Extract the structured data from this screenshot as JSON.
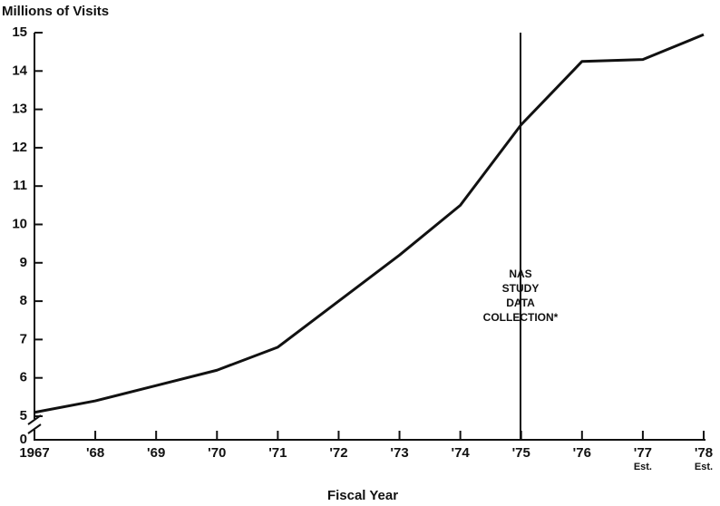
{
  "chart_data": {
    "type": "line",
    "title": "Millions of Visits",
    "x_label": "Fiscal Year",
    "categories": [
      "1967",
      "'68",
      "'69",
      "'70",
      "'71",
      "'72",
      "'73",
      "'74",
      "'75",
      "'76",
      "'77",
      "'78"
    ],
    "x_notes": [
      null,
      null,
      null,
      null,
      null,
      null,
      null,
      null,
      null,
      null,
      "Est.",
      "Est."
    ],
    "series": [
      {
        "name": "Millions of Visits",
        "color": "#111111",
        "values": [
          5.1,
          5.4,
          5.8,
          6.2,
          6.8,
          8.0,
          9.2,
          10.5,
          12.6,
          14.25,
          14.3,
          14.95
        ]
      }
    ],
    "ylim": [
      0,
      15
    ],
    "yticks": [
      0,
      5,
      6,
      7,
      8,
      9,
      10,
      11,
      12,
      13,
      14,
      15
    ],
    "axis_break": [
      0,
      5
    ],
    "annotation": [
      "NAS",
      "STUDY",
      "DATA",
      "COLLECTION*"
    ]
  }
}
